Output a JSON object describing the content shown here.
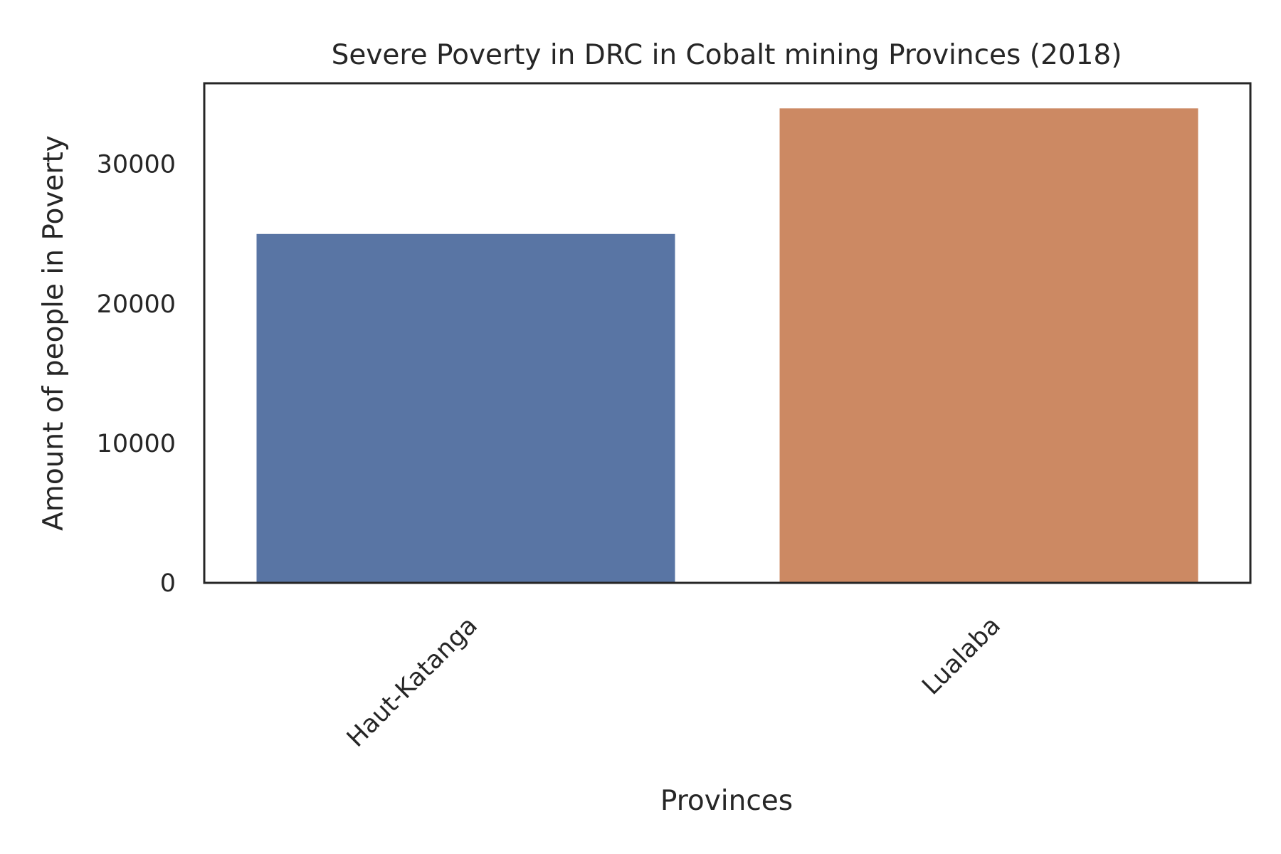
{
  "chart_data": {
    "type": "bar",
    "title": "Severe Poverty in DRC in Cobalt mining Provinces (2018)",
    "xlabel": "Provinces",
    "ylabel": "Amount of people in Poverty",
    "categories": [
      "Haut-Katanga",
      "Lualaba"
    ],
    "values": [
      25000,
      34000
    ],
    "colors": [
      "#5975a4",
      "#cc8963"
    ],
    "ylim": [
      0,
      35800
    ],
    "yticks": [
      0,
      10000,
      20000,
      30000
    ],
    "grid": false,
    "legend": "none"
  }
}
